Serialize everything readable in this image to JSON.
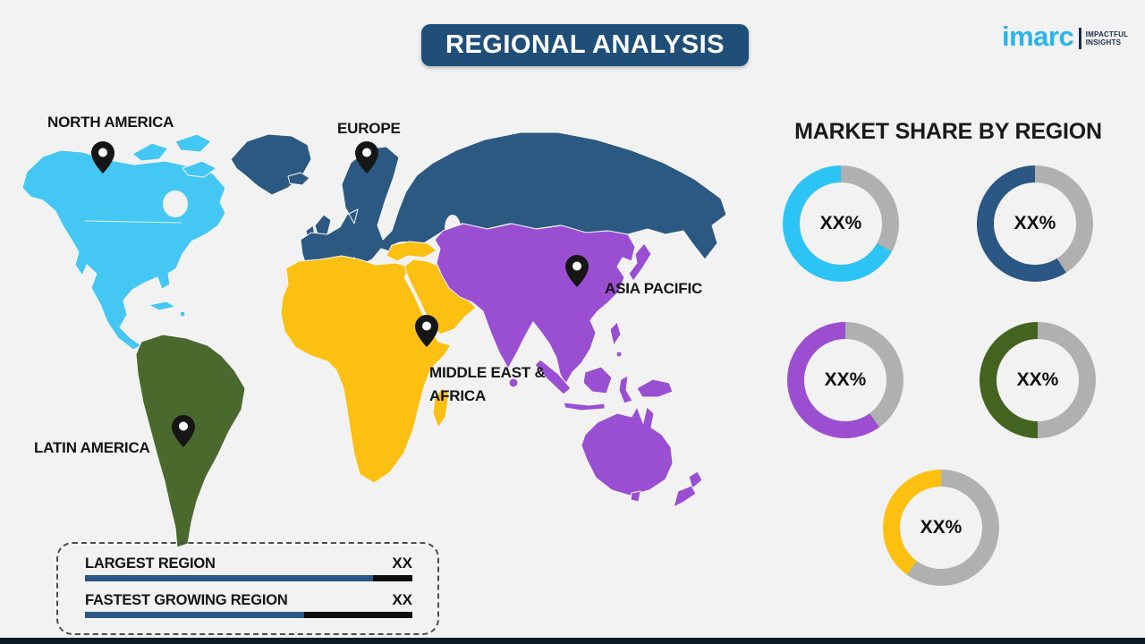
{
  "page": {
    "background": "#f2f2f2",
    "bottom_strip_color": "#0e1b26"
  },
  "header": {
    "title": "REGIONAL ANALYSIS",
    "banner_color": "#1f4f78",
    "text_color": "#ffffff"
  },
  "logo": {
    "brand": "imarc",
    "brand_color": "#29b5e9",
    "divider_color": "#1c2b4a",
    "tagline_line1": "IMPACTFUL",
    "tagline_line2": "INSIGHTS",
    "tagline_color": "#1c2b4a"
  },
  "map": {
    "pin_color": "#161616",
    "regions": [
      {
        "id": "north-america",
        "label": "NORTH AMERICA",
        "color": "#45c7f3"
      },
      {
        "id": "europe",
        "label": "EUROPE",
        "color": "#2b5982"
      },
      {
        "id": "asia-pacific",
        "label": "ASIA PACIFIC",
        "color": "#9a4fd2"
      },
      {
        "id": "middle-east-africa",
        "label": "MIDDLE EAST & AFRICA",
        "color": "#fcc013"
      },
      {
        "id": "latin-america",
        "label": "LATIN AMERICA",
        "color": "#4a692c"
      }
    ]
  },
  "market_share": {
    "heading": "MARKET SHARE BY REGION",
    "track_color": "#b0b0b0"
  },
  "chart_data": [
    {
      "type": "pie",
      "title": "MARKET SHARE BY REGION",
      "note": "Five donut charts with placeholder percentage labels; colors match map regions",
      "legend_position": "none",
      "track_color": "#b0b0b0",
      "series": [
        {
          "name": "North America",
          "label": "XX%",
          "color": "#2cc4f4",
          "visual_fill_pct": 67
        },
        {
          "name": "Europe",
          "label": "XX%",
          "color": "#2a5783",
          "visual_fill_pct": 59
        },
        {
          "name": "Asia Pacific",
          "label": "XX%",
          "color": "#9b4fd0",
          "visual_fill_pct": 60
        },
        {
          "name": "Latin America",
          "label": "XX%",
          "color": "#436321",
          "visual_fill_pct": 50
        },
        {
          "name": "Middle East & Africa",
          "label": "XX%",
          "color": "#fcc011",
          "visual_fill_pct": 40
        }
      ]
    },
    {
      "type": "bar",
      "categories": [
        "LARGEST REGION",
        "FASTEST GROWING REGION"
      ],
      "value_labels": [
        "XX",
        "XX"
      ],
      "visual_fill_pct": [
        88,
        67
      ],
      "bar_color": "#2a5783",
      "track_color": "#0d0d0d"
    }
  ],
  "legend_box": {
    "bar_fill_color": "#2a5783",
    "bar_track_color": "#0d0d0d",
    "items": [
      {
        "label": "LARGEST REGION",
        "value": "XX",
        "fill_pct": 88
      },
      {
        "label": "FASTEST GROWING REGION",
        "value": "XX",
        "fill_pct": 67
      }
    ]
  }
}
